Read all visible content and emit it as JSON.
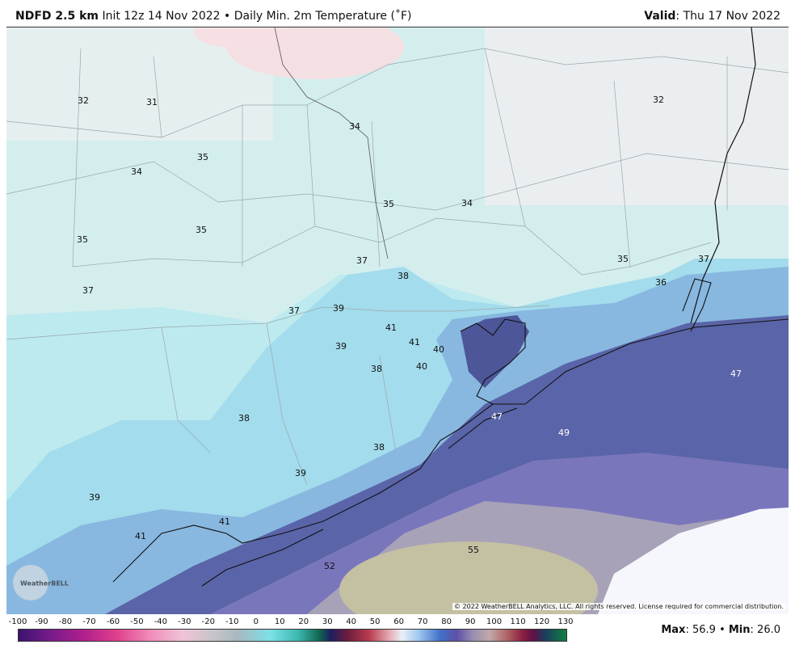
{
  "header": {
    "model": "NDFD 2.5 km",
    "init": "Init 12z 14 Nov 2022",
    "separator": "•",
    "field": "Daily Min. 2m Temperature (˚F)",
    "valid_label": "Valid",
    "valid_value": ": Thu 17 Nov 2022"
  },
  "map_labels": [
    "32",
    "31",
    "34",
    "32",
    "35",
    "34",
    "35",
    "34",
    "35",
    "35",
    "37",
    "38",
    "35",
    "37",
    "36",
    "37",
    "37",
    "39",
    "41",
    "41",
    "40",
    "39",
    "38",
    "40",
    "47",
    "47",
    "49",
    "38",
    "38",
    "39",
    "39",
    "41",
    "41",
    "55",
    "52"
  ],
  "copyright": "© 2022 WeatherBELL Analytics, LLC. All rights reserved. License required for commercial distribution.",
  "logo": "WeatherBELL",
  "colorbar": {
    "ticks": [
      -100,
      -90,
      -80,
      -70,
      -60,
      -50,
      -40,
      -30,
      -20,
      -10,
      0,
      10,
      20,
      30,
      40,
      50,
      60,
      70,
      80,
      90,
      100,
      110,
      120,
      130
    ]
  },
  "footer": {
    "max_label": "Max",
    "max_value": ": 56.9",
    "separator": "•",
    "min_label": "Min",
    "min_value": ": 26.0"
  }
}
